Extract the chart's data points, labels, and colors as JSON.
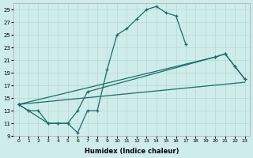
{
  "xlabel": "Humidex (Indice chaleur)",
  "bg_color": "#ceecea",
  "grid_color": "#b8d8d6",
  "line_color": "#1e6b68",
  "xlim": [
    -0.5,
    23.5
  ],
  "ylim": [
    9,
    30
  ],
  "xticks": [
    0,
    1,
    2,
    3,
    4,
    5,
    6,
    7,
    8,
    9,
    10,
    11,
    12,
    13,
    14,
    15,
    16,
    17,
    18,
    19,
    20,
    21,
    22,
    23
  ],
  "yticks": [
    9,
    11,
    13,
    15,
    17,
    19,
    21,
    23,
    25,
    27,
    29
  ],
  "line1_x": [
    0,
    1,
    2,
    3,
    4,
    5,
    6,
    7,
    8,
    9,
    10,
    11,
    12,
    13,
    14,
    15,
    16,
    17
  ],
  "line1_y": [
    14,
    13,
    13,
    11,
    11,
    11,
    9.5,
    13,
    13,
    19.5,
    25,
    26,
    27.5,
    29,
    29.5,
    28.5,
    28,
    23.5
  ],
  "line2_x": [
    0,
    1,
    3,
    4,
    5,
    6,
    7,
    20,
    21,
    22,
    23
  ],
  "line2_y": [
    14,
    13,
    11,
    11,
    11,
    13,
    16,
    21.5,
    22,
    20,
    18
  ],
  "line3_x": [
    0,
    20,
    21,
    22,
    23
  ],
  "line3_y": [
    14,
    21.5,
    22,
    20,
    18
  ],
  "line4_x": [
    0,
    23
  ],
  "line4_y": [
    14,
    17.5
  ]
}
